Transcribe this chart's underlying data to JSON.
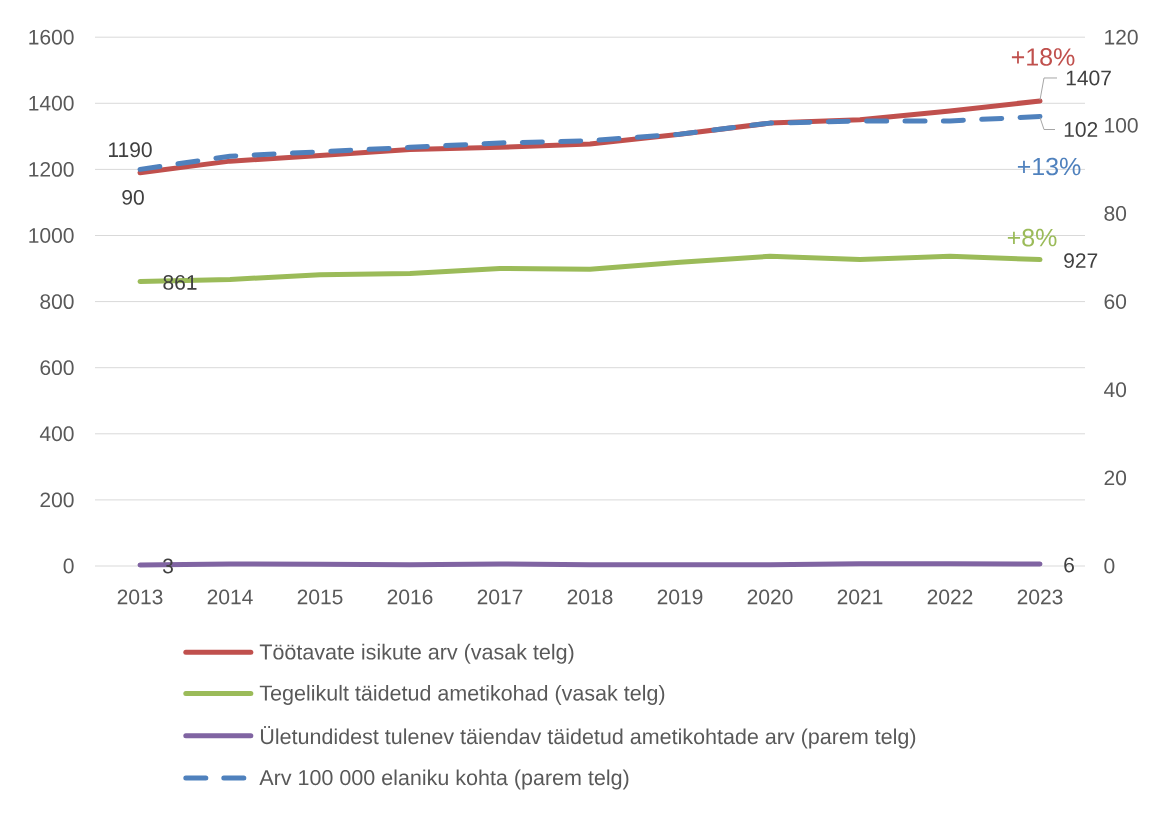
{
  "chart_data": {
    "type": "line",
    "categories": [
      "2013",
      "2014",
      "2015",
      "2016",
      "2017",
      "2018",
      "2019",
      "2020",
      "2021",
      "2022",
      "2023"
    ],
    "ylim": [
      0,
      1600
    ],
    "yticks": [
      0,
      200,
      400,
      600,
      800,
      1000,
      1200,
      1400,
      1600
    ],
    "y2lim": [
      0,
      120
    ],
    "y2ticks": [
      0,
      20,
      40,
      60,
      80,
      100,
      120
    ],
    "grid": "y",
    "legend": "bottom",
    "line_style": "solid",
    "series": [
      {
        "name": "Töötavate isikute arv (vasak telg)",
        "color": "#c0504d",
        "values": [
          1190,
          1225,
          1242,
          1260,
          1267,
          1277,
          1306,
          1340,
          1350,
          1377,
          1407
        ],
        "value_labels": [
          "1190",
          null,
          null,
          null,
          null,
          null,
          null,
          null,
          null,
          null,
          "1407"
        ]
      },
      {
        "name": "Tegelikult täidetud ametikohad (vasak telg)",
        "color": "#9bbb59",
        "values": [
          861,
          867,
          881,
          885,
          900,
          898,
          919,
          937,
          927,
          937,
          927
        ],
        "value_labels": [
          "861",
          null,
          null,
          null,
          null,
          null,
          null,
          null,
          null,
          null,
          "927"
        ]
      },
      {
        "name": "Ületundidest tulenev täiendav täidetud ametikohtade arv (parem telg)",
        "color": "#8064a2",
        "values": [
          3,
          6,
          5,
          4,
          6,
          4,
          4,
          4,
          7,
          7,
          6
        ],
        "value_labels": [
          "3",
          null,
          null,
          null,
          null,
          null,
          null,
          null,
          null,
          null,
          "6"
        ]
      },
      {
        "name": "Arv 100 000 elaniku kohta (parem telg)",
        "color": "#4f81bd",
        "axis": "y2",
        "line_style": "dashed",
        "values": [
          90,
          93,
          94,
          95,
          96,
          96.5,
          98,
          100.5,
          101,
          101,
          102
        ],
        "value_labels": [
          "90",
          null,
          null,
          null,
          null,
          null,
          null,
          null,
          null,
          null,
          "102"
        ]
      }
    ],
    "annotations": [
      "+18%",
      "+13%",
      "+8%"
    ]
  }
}
